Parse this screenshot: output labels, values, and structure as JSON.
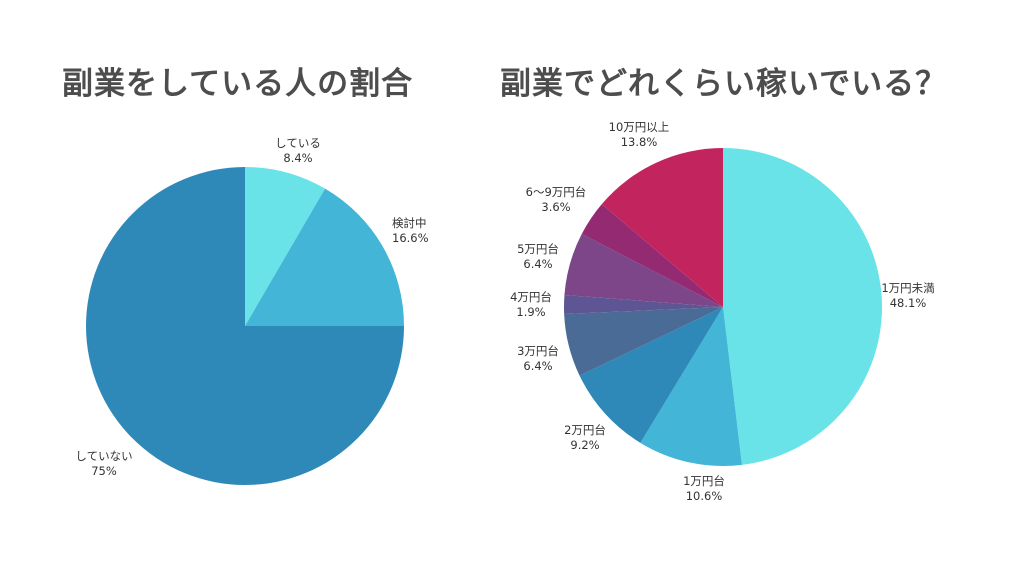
{
  "chart_data": [
    {
      "type": "pie",
      "title": "副業をしている人の割合",
      "slices": [
        {
          "label": "している",
          "value": 8.4,
          "value_text": "8.4%",
          "color": "#6ae3e8"
        },
        {
          "label": "検討中",
          "value": 16.6,
          "value_text": "16.6%",
          "color": "#43b5d6"
        },
        {
          "label": "していない",
          "value": 75,
          "value_text": "75%",
          "color": "#2e89b8"
        }
      ],
      "start": "12 o'clock",
      "direction": "clockwise",
      "legend": "none (labels outside slices)"
    },
    {
      "type": "pie",
      "title": "副業でどれくらい稼いでいる？",
      "slices": [
        {
          "label": "1万円未満",
          "value": 48.1,
          "value_text": "48.1%",
          "color": "#6ae3e8"
        },
        {
          "label": "1万円台",
          "value": 10.6,
          "value_text": "10.6%",
          "color": "#43b5d6"
        },
        {
          "label": "2万円台",
          "value": 9.2,
          "value_text": "9.2%",
          "color": "#2e89b8"
        },
        {
          "label": "3万円台",
          "value": 6.4,
          "value_text": "6.4%",
          "color": "#4a6b96"
        },
        {
          "label": "4万円台",
          "value": 1.9,
          "value_text": "1.9%",
          "color": "#5e5594"
        },
        {
          "label": "5万円台",
          "value": 6.4,
          "value_text": "6.4%",
          "color": "#7c4688"
        },
        {
          "label": "6〜9万円台",
          "value": 3.6,
          "value_text": "3.6%",
          "color": "#942a72"
        },
        {
          "label": "10万円以上",
          "value": 13.8,
          "value_text": "13.8%",
          "color": "#c2255e"
        }
      ],
      "start": "12 o'clock",
      "direction": "clockwise",
      "legend": "none (labels outside slices)"
    }
  ]
}
